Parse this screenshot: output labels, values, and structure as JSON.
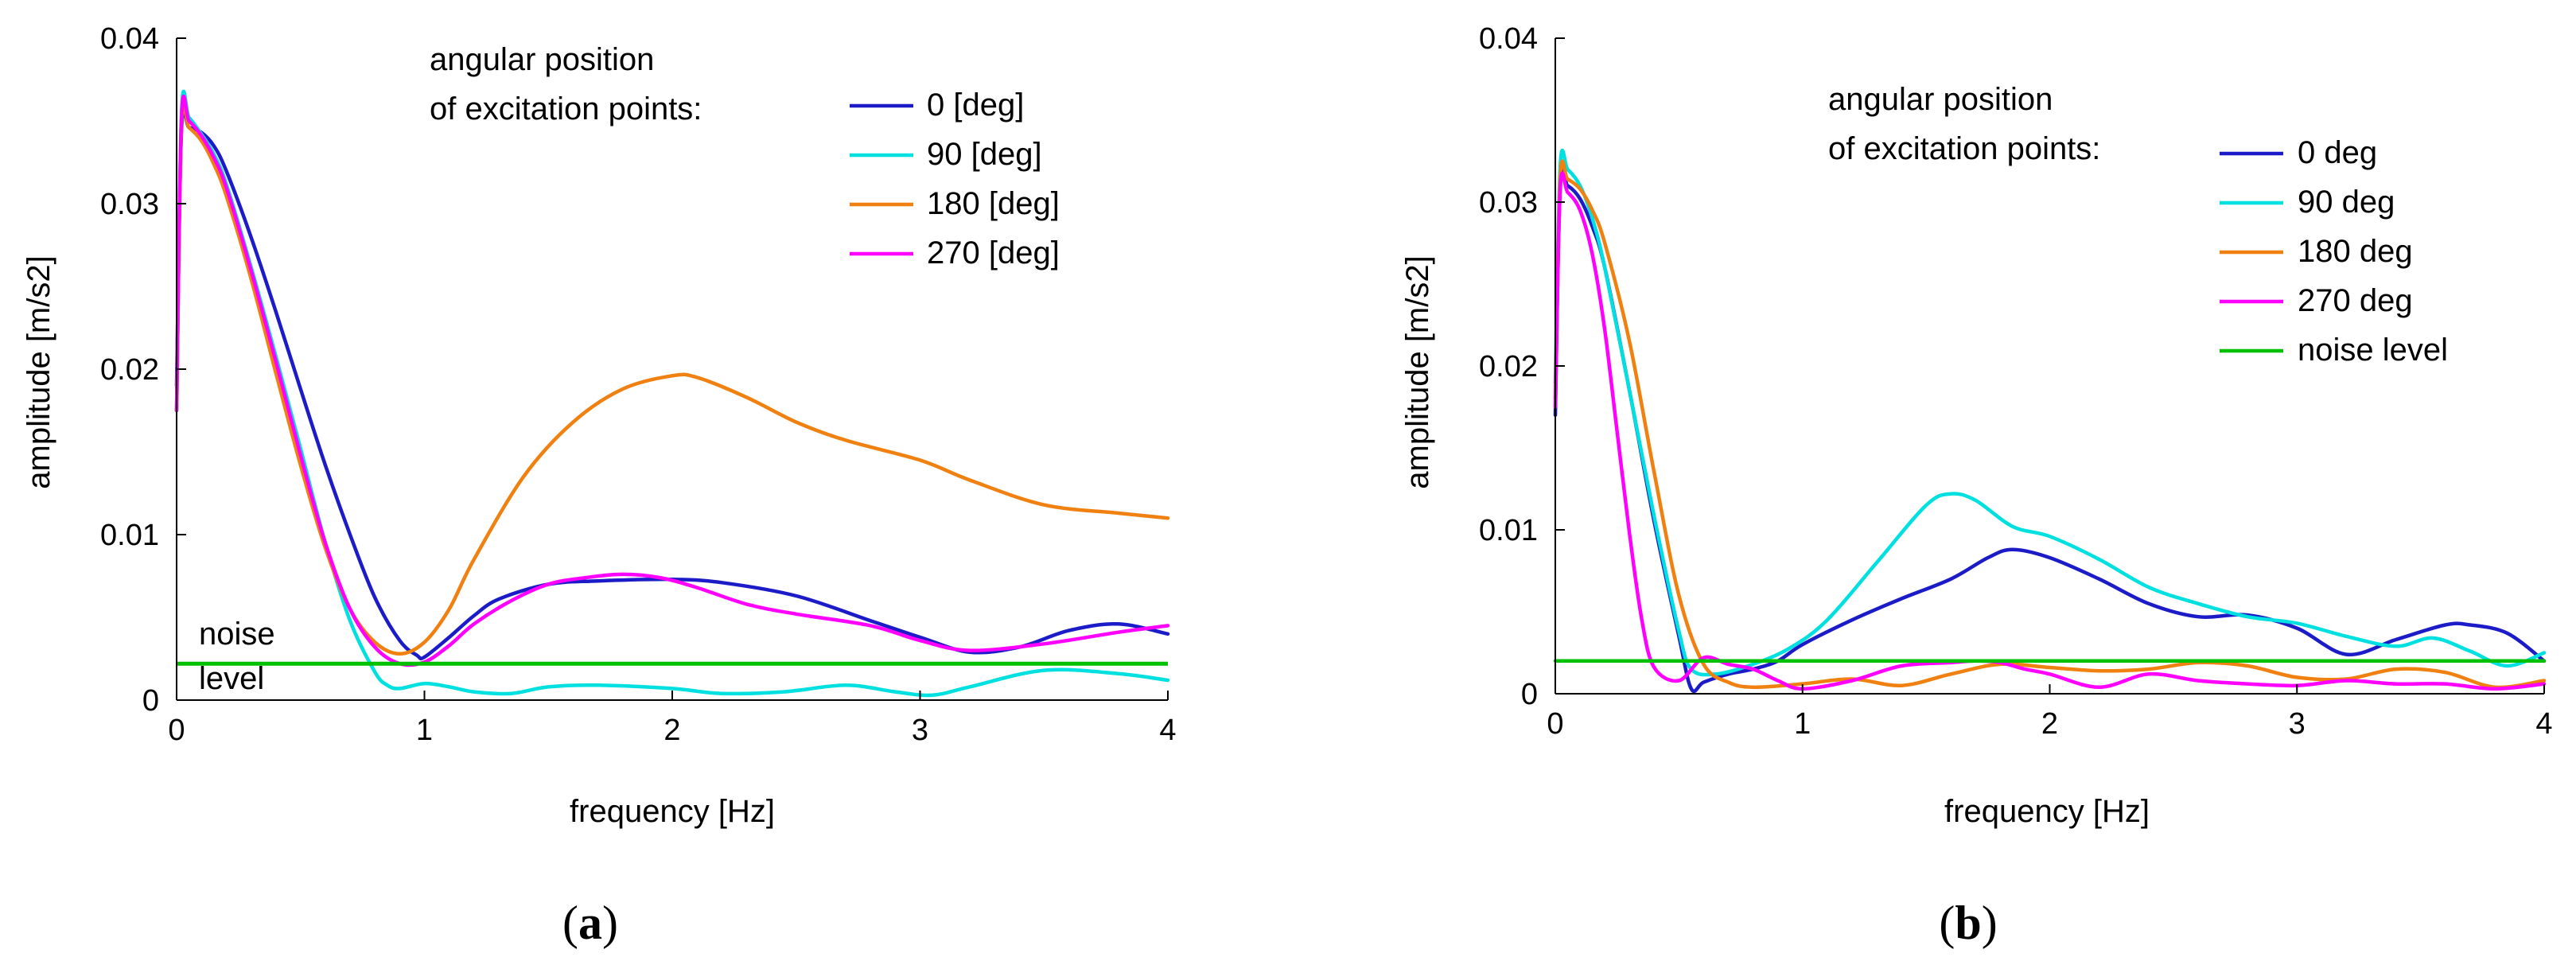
{
  "colors": {
    "deg0": "#1b1bc8",
    "deg90": "#00e0e0",
    "deg180": "#f08010",
    "deg270": "#ff00ff",
    "noise": "#00c000"
  },
  "chart_data": [
    {
      "id": "a",
      "type": "line",
      "caption_open": "(",
      "caption_letter": "a",
      "caption_close": ")",
      "xlabel": "frequency [Hz]",
      "ylabel": "amplitude [m/s2]",
      "xlim": [
        0,
        4
      ],
      "ylim": [
        0,
        0.04
      ],
      "xticks": [
        0,
        1,
        2,
        3,
        4
      ],
      "xtick_labels": [
        "0",
        "1",
        "2",
        "3",
        "4"
      ],
      "yticks": [
        0,
        0.01,
        0.02,
        0.03,
        0.04
      ],
      "ytick_labels": [
        "0",
        "0.01",
        "0.02",
        "0.03",
        "0.04"
      ],
      "legend_title": [
        "angular position",
        "of excitation points:"
      ],
      "noise_annotation": [
        "noise",
        "level"
      ],
      "noise_level": 0.0022,
      "series": [
        {
          "name": "0 [deg]",
          "color_key": "deg0",
          "x": [
            0,
            0.02,
            0.05,
            0.1,
            0.15,
            0.2,
            0.3,
            0.4,
            0.5,
            0.6,
            0.7,
            0.8,
            0.9,
            0.97,
            1.0,
            1.1,
            1.2,
            1.3,
            1.5,
            1.7,
            2.0,
            2.2,
            2.5,
            2.8,
            3.0,
            3.2,
            3.4,
            3.6,
            3.8,
            4.0
          ],
          "y": [
            0.019,
            0.0345,
            0.0346,
            0.0343,
            0.0335,
            0.032,
            0.028,
            0.0235,
            0.0188,
            0.0142,
            0.01,
            0.0062,
            0.0036,
            0.0027,
            0.0026,
            0.0038,
            0.0051,
            0.0061,
            0.007,
            0.0072,
            0.0073,
            0.0071,
            0.0063,
            0.0048,
            0.0038,
            0.0029,
            0.0032,
            0.0042,
            0.0046,
            0.004
          ]
        },
        {
          "name": "90 [deg]",
          "color_key": "deg90",
          "x": [
            0,
            0.02,
            0.05,
            0.1,
            0.15,
            0.2,
            0.3,
            0.4,
            0.5,
            0.6,
            0.7,
            0.8,
            0.85,
            0.9,
            1.0,
            1.1,
            1.2,
            1.35,
            1.5,
            1.7,
            2.0,
            2.2,
            2.45,
            2.7,
            2.9,
            3.05,
            3.2,
            3.5,
            3.8,
            4.0
          ],
          "y": [
            0.0175,
            0.0355,
            0.0352,
            0.0342,
            0.033,
            0.0312,
            0.0262,
            0.0208,
            0.0152,
            0.0095,
            0.0048,
            0.0017,
            0.0009,
            0.0007,
            0.001,
            0.0008,
            0.0005,
            0.0004,
            0.0008,
            0.0009,
            0.0007,
            0.0004,
            0.0005,
            0.0009,
            0.0005,
            0.0003,
            0.0008,
            0.0018,
            0.0016,
            0.0012
          ]
        },
        {
          "name": "180 [deg]",
          "color_key": "deg180",
          "x": [
            0,
            0.02,
            0.05,
            0.1,
            0.15,
            0.2,
            0.3,
            0.4,
            0.5,
            0.6,
            0.7,
            0.8,
            0.9,
            1.0,
            1.1,
            1.2,
            1.4,
            1.6,
            1.8,
            2.0,
            2.1,
            2.3,
            2.5,
            2.7,
            3.0,
            3.2,
            3.5,
            3.8,
            4.0
          ],
          "y": [
            0.0175,
            0.0348,
            0.0346,
            0.0338,
            0.0324,
            0.0305,
            0.0255,
            0.0198,
            0.0142,
            0.0092,
            0.0055,
            0.0035,
            0.0028,
            0.0035,
            0.0055,
            0.0085,
            0.0135,
            0.0168,
            0.0188,
            0.0196,
            0.0195,
            0.0183,
            0.0168,
            0.0157,
            0.0145,
            0.0133,
            0.0118,
            0.0113,
            0.011
          ]
        },
        {
          "name": "270 [deg]",
          "color_key": "deg270",
          "x": [
            0,
            0.02,
            0.05,
            0.1,
            0.15,
            0.2,
            0.3,
            0.4,
            0.5,
            0.6,
            0.7,
            0.8,
            0.9,
            1.0,
            1.1,
            1.2,
            1.35,
            1.5,
            1.65,
            1.8,
            1.95,
            2.1,
            2.3,
            2.5,
            2.8,
            3.0,
            3.2,
            3.5,
            3.8,
            4.0
          ],
          "y": [
            0.0175,
            0.0352,
            0.035,
            0.0341,
            0.0328,
            0.031,
            0.026,
            0.0205,
            0.0148,
            0.0095,
            0.0055,
            0.0032,
            0.0022,
            0.0023,
            0.0033,
            0.0046,
            0.006,
            0.007,
            0.0074,
            0.0076,
            0.0074,
            0.0068,
            0.0058,
            0.0052,
            0.0045,
            0.0036,
            0.003,
            0.0034,
            0.0041,
            0.0045
          ]
        }
      ]
    },
    {
      "id": "b",
      "type": "line",
      "caption_open": "(",
      "caption_letter": "b",
      "caption_close": ")",
      "xlabel": "frequency [Hz]",
      "ylabel": "amplitude [m/s2]",
      "xlim": [
        0,
        4
      ],
      "ylim": [
        0,
        0.04
      ],
      "xticks": [
        0,
        1,
        2,
        3,
        4
      ],
      "xtick_labels": [
        "0",
        "1",
        "2",
        "3",
        "4"
      ],
      "yticks": [
        0,
        0.01,
        0.02,
        0.03,
        0.04
      ],
      "ytick_labels": [
        "0",
        "0.01",
        "0.02",
        "0.03",
        "0.04"
      ],
      "legend_title": [
        "angular position",
        "of excitation points:"
      ],
      "noise_level": 0.002,
      "series": [
        {
          "name": "0 deg",
          "color_key": "deg0",
          "x": [
            0,
            0.02,
            0.05,
            0.1,
            0.15,
            0.2,
            0.3,
            0.4,
            0.5,
            0.55,
            0.6,
            0.7,
            0.8,
            0.9,
            1.0,
            1.2,
            1.4,
            1.6,
            1.75,
            1.85,
            2.0,
            2.2,
            2.4,
            2.6,
            2.8,
            3.0,
            3.2,
            3.4,
            3.6,
            3.7,
            3.85,
            4.0
          ],
          "y": [
            0.017,
            0.031,
            0.031,
            0.0302,
            0.0285,
            0.026,
            0.0185,
            0.0105,
            0.0035,
            0.0003,
            0.0007,
            0.0012,
            0.0015,
            0.002,
            0.003,
            0.0045,
            0.0058,
            0.007,
            0.0083,
            0.0088,
            0.0083,
            0.007,
            0.0055,
            0.0047,
            0.0048,
            0.004,
            0.0024,
            0.0033,
            0.0042,
            0.0042,
            0.0037,
            0.002
          ]
        },
        {
          "name": "90 deg",
          "color_key": "deg90",
          "x": [
            0,
            0.02,
            0.05,
            0.1,
            0.15,
            0.2,
            0.3,
            0.4,
            0.5,
            0.55,
            0.65,
            0.8,
            0.95,
            1.1,
            1.3,
            1.5,
            1.6,
            1.7,
            1.85,
            2.0,
            2.2,
            2.4,
            2.6,
            2.8,
            3.0,
            3.2,
            3.4,
            3.55,
            3.7,
            3.85,
            4.0
          ],
          "y": [
            0.019,
            0.0322,
            0.032,
            0.031,
            0.029,
            0.026,
            0.0185,
            0.0108,
            0.0038,
            0.0015,
            0.0012,
            0.0018,
            0.0028,
            0.0045,
            0.008,
            0.0115,
            0.0122,
            0.0118,
            0.0102,
            0.0096,
            0.0082,
            0.0065,
            0.0055,
            0.0047,
            0.0043,
            0.0035,
            0.0029,
            0.0034,
            0.0026,
            0.0017,
            0.0025
          ]
        },
        {
          "name": "180 deg",
          "color_key": "deg180",
          "x": [
            0,
            0.02,
            0.05,
            0.1,
            0.15,
            0.2,
            0.3,
            0.4,
            0.5,
            0.6,
            0.7,
            0.8,
            1.0,
            1.2,
            1.4,
            1.6,
            1.8,
            2.0,
            2.2,
            2.4,
            2.6,
            2.8,
            3.0,
            3.2,
            3.4,
            3.6,
            3.8,
            4.0
          ],
          "y": [
            0.018,
            0.0315,
            0.0314,
            0.0308,
            0.0295,
            0.0275,
            0.0215,
            0.0135,
            0.006,
            0.0018,
            0.0007,
            0.0004,
            0.0006,
            0.0009,
            0.0005,
            0.0012,
            0.0018,
            0.0016,
            0.0014,
            0.0015,
            0.0019,
            0.0017,
            0.001,
            0.0009,
            0.0015,
            0.0013,
            0.0004,
            0.0008
          ]
        },
        {
          "name": "270 deg",
          "color_key": "deg270",
          "x": [
            0,
            0.02,
            0.05,
            0.1,
            0.15,
            0.2,
            0.25,
            0.3,
            0.35,
            0.4,
            0.5,
            0.6,
            0.7,
            0.8,
            0.9,
            1.0,
            1.2,
            1.4,
            1.6,
            1.7,
            1.8,
            1.9,
            2.0,
            2.2,
            2.4,
            2.6,
            2.8,
            3.0,
            3.2,
            3.4,
            3.6,
            3.8,
            4.0
          ],
          "y": [
            0.0175,
            0.0308,
            0.0306,
            0.0295,
            0.0268,
            0.0222,
            0.016,
            0.0098,
            0.0045,
            0.0016,
            0.0008,
            0.0022,
            0.0018,
            0.0015,
            0.0008,
            0.0003,
            0.0008,
            0.0017,
            0.0019,
            0.002,
            0.0019,
            0.0015,
            0.0012,
            0.0004,
            0.0012,
            0.0008,
            0.0006,
            0.0005,
            0.0008,
            0.0006,
            0.0006,
            0.0003,
            0.0006
          ]
        },
        {
          "name": "noise level",
          "color_key": "noise",
          "x": [
            0,
            4
          ],
          "y": [
            0.002,
            0.002
          ]
        }
      ]
    }
  ]
}
